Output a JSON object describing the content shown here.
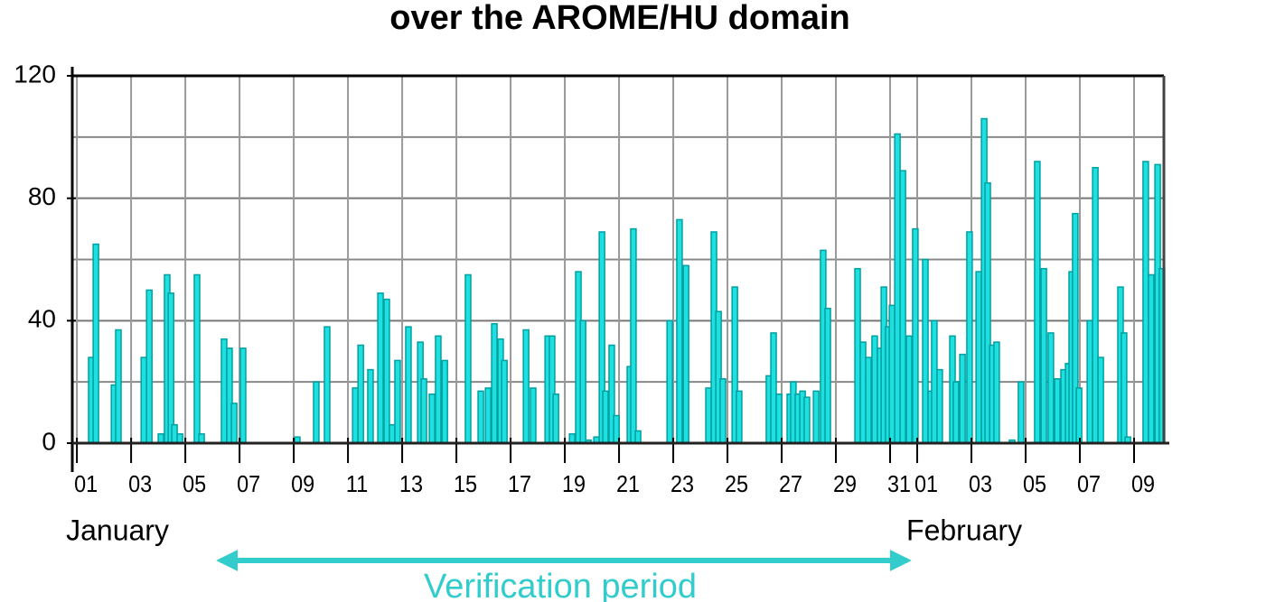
{
  "chart_data": {
    "type": "bar",
    "title": "over the AROME/HU domain",
    "month_labels": [
      {
        "x": 0,
        "label": "January"
      },
      {
        "x": 31,
        "label": "February"
      }
    ],
    "annotation": "Verification period",
    "color": "#1fe0e0",
    "edge_color": "#00a0a0",
    "grid": true,
    "xlim": [
      -0.17,
      40.1
    ],
    "ylim": [
      0,
      120
    ],
    "yticks": [
      0,
      40,
      80,
      120
    ],
    "y_minor_grid": [
      20,
      60,
      100
    ],
    "xticks": [
      {
        "value": 0,
        "label": "01"
      },
      {
        "value": 2,
        "label": "03"
      },
      {
        "value": 4,
        "label": "05"
      },
      {
        "value": 6,
        "label": "07"
      },
      {
        "value": 8,
        "label": "09"
      },
      {
        "value": 10,
        "label": "11"
      },
      {
        "value": 12,
        "label": "13"
      },
      {
        "value": 14,
        "label": "15"
      },
      {
        "value": 16,
        "label": "17"
      },
      {
        "value": 18,
        "label": "19"
      },
      {
        "value": 20,
        "label": "21"
      },
      {
        "value": 22,
        "label": "23"
      },
      {
        "value": 24,
        "label": "25"
      },
      {
        "value": 26,
        "label": "27"
      },
      {
        "value": 28,
        "label": "29"
      },
      {
        "value": 30,
        "label": "31"
      },
      {
        "value": 31,
        "label": "01"
      },
      {
        "value": 33,
        "label": "03"
      },
      {
        "value": 35,
        "label": "05"
      },
      {
        "value": 37,
        "label": "07"
      },
      {
        "value": 39,
        "label": "09"
      }
    ],
    "x": [
      0.53,
      0.7,
      1.37,
      1.53,
      2.47,
      2.67,
      3.1,
      3.33,
      3.47,
      3.6,
      3.8,
      4.43,
      4.6,
      5.43,
      5.63,
      5.8,
      6.13,
      8.13,
      8.83,
      9.23,
      10.27,
      10.47,
      10.83,
      11.2,
      11.43,
      11.63,
      11.83,
      12.23,
      12.67,
      12.8,
      13.1,
      13.33,
      13.57,
      14.43,
      14.9,
      15.17,
      15.4,
      15.63,
      15.77,
      16.57,
      16.83,
      17.37,
      17.53,
      17.67,
      18.27,
      18.5,
      18.67,
      18.87,
      19.17,
      19.37,
      19.5,
      19.73,
      19.9,
      20.4,
      20.53,
      20.7,
      21.87,
      22.23,
      22.47,
      23.3,
      23.5,
      23.67,
      23.83,
      24.27,
      24.43,
      25.53,
      25.7,
      25.9,
      26.3,
      26.43,
      26.6,
      26.77,
      26.93,
      27.27,
      27.53,
      27.7,
      28.8,
      29.0,
      29.2,
      29.43,
      29.63,
      29.77,
      29.93,
      30.07,
      30.27,
      30.47,
      30.7,
      30.93,
      31.3,
      31.5,
      31.63,
      31.83,
      32.3,
      32.43,
      32.67,
      32.93,
      33.27,
      33.47,
      33.6,
      33.77,
      33.93,
      34.5,
      34.83,
      35.43,
      35.67,
      35.93,
      36.17,
      36.4,
      36.57,
      36.7,
      36.83,
      36.97,
      37.37,
      37.57,
      37.77,
      38.5,
      38.63,
      38.77,
      39.43,
      39.63,
      39.87,
      40.03
    ],
    "values": [
      28,
      65,
      19,
      37,
      28,
      50,
      3,
      55,
      49,
      6,
      3,
      55,
      3,
      34,
      31,
      13,
      31,
      2,
      20,
      38,
      18,
      32,
      24,
      49,
      47,
      6,
      27,
      38,
      33,
      21,
      16,
      35,
      27,
      55,
      17,
      18,
      39,
      34,
      27,
      37,
      18,
      35,
      35,
      16,
      3,
      56,
      40,
      1,
      2,
      69,
      17,
      32,
      9,
      25,
      70,
      4,
      40,
      73,
      58,
      18,
      69,
      43,
      21,
      51,
      17,
      22,
      36,
      16,
      16,
      20,
      16,
      17,
      15,
      17,
      63,
      44,
      57,
      33,
      28,
      35,
      31,
      51,
      38,
      45,
      101,
      89,
      35,
      70,
      60,
      17,
      40,
      24,
      35,
      20,
      29,
      69,
      56,
      106,
      85,
      32,
      33,
      1,
      20,
      92,
      57,
      36,
      21,
      24,
      26,
      56,
      75,
      18,
      40,
      90,
      28,
      51,
      36,
      2,
      92,
      55,
      91,
      57
    ]
  }
}
